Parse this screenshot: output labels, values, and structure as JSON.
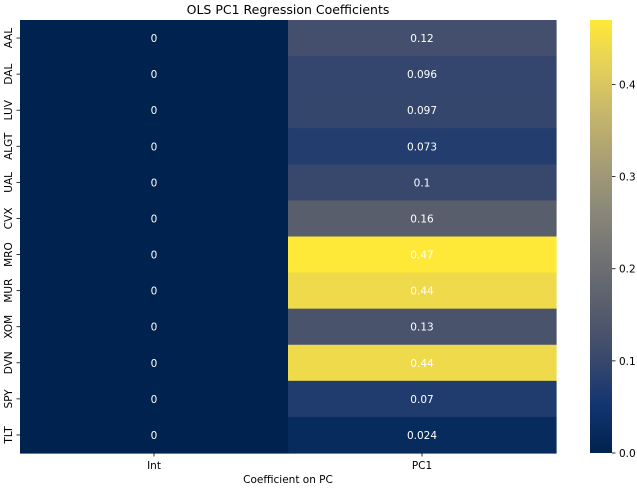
{
  "chart_data": {
    "type": "heatmap",
    "title": "OLS PC1 Regression Coefficients",
    "xlabel": "Coefficient on PC",
    "ylabel": "",
    "columns": [
      "Int",
      "PC1"
    ],
    "rows": [
      "AAL",
      "DAL",
      "LUV",
      "ALGT",
      "UAL",
      "CVX",
      "MRO",
      "MUR",
      "XOM",
      "DVN",
      "SPY",
      "TLT"
    ],
    "values": [
      [
        0,
        0.12
      ],
      [
        0,
        0.096
      ],
      [
        0,
        0.097
      ],
      [
        0,
        0.073
      ],
      [
        0,
        0.1
      ],
      [
        0,
        0.16
      ],
      [
        0,
        0.47
      ],
      [
        0,
        0.44
      ],
      [
        0,
        0.13
      ],
      [
        0,
        0.44
      ],
      [
        0,
        0.07
      ],
      [
        0,
        0.024
      ]
    ],
    "cell_labels": [
      [
        "0",
        "0.12"
      ],
      [
        "0",
        "0.096"
      ],
      [
        "0",
        "0.097"
      ],
      [
        "0",
        "0.073"
      ],
      [
        "0",
        "0.1"
      ],
      [
        "0",
        "0.16"
      ],
      [
        "0",
        "0.47"
      ],
      [
        "0",
        "0.44"
      ],
      [
        "0",
        "0.13"
      ],
      [
        "0",
        "0.44"
      ],
      [
        "0",
        "0.07"
      ],
      [
        "0",
        "0.024"
      ]
    ],
    "colormap": "cividis",
    "colormap_stops": [
      "#00224e",
      "#123570",
      "#3b496c",
      "#575d6d",
      "#707173",
      "#8a8779",
      "#a69d75",
      "#c4b56c",
      "#e4cf5b",
      "#fee838"
    ],
    "vmin": 0,
    "vmax": 0.47,
    "colorbar_ticks": [
      0.0,
      0.1,
      0.2,
      0.3,
      0.4
    ],
    "colorbar_tick_labels": [
      "0.0",
      "0.1",
      "0.2",
      "0.3",
      "0.4"
    ],
    "annotation_color": "#ffffff",
    "grid": false,
    "legend": "colorbar-right"
  }
}
